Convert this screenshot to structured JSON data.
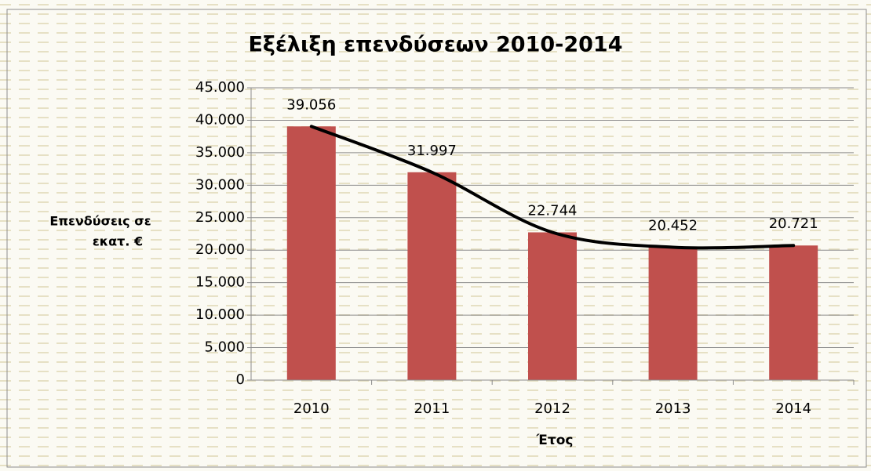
{
  "chart_data": {
    "type": "bar",
    "title": "Εξέλιξη επενδύσεων 2010-2014",
    "ylabel": [
      "Επενδύσεις σε",
      "εκατ. €"
    ],
    "xlabel": "Έτος",
    "categories": [
      "2010",
      "2011",
      "2012",
      "2013",
      "2014"
    ],
    "values": [
      39056,
      31997,
      22744,
      20452,
      20721
    ],
    "value_labels": [
      "39.056",
      "31.997",
      "22.744",
      "20.452",
      "20.721"
    ],
    "color": "#c0504d",
    "trendline_color": "#000000",
    "ylim": [
      0,
      45000
    ],
    "yticks": [
      0,
      {
        "value": 5000,
        "label": "5.000"
      },
      {
        "value": 10000,
        "label": "10.000"
      },
      {
        "value": 15000,
        "label": "15.000"
      },
      {
        "value": 20000,
        "label": "20.000"
      },
      {
        "value": 25000,
        "label": "25.000"
      },
      {
        "value": 30000,
        "label": "30.000"
      },
      {
        "value": 35000,
        "label": "35.000"
      },
      {
        "value": 40000,
        "label": "40.000"
      },
      {
        "value": 45000,
        "label": "45.000"
      }
    ],
    "grid": true
  }
}
